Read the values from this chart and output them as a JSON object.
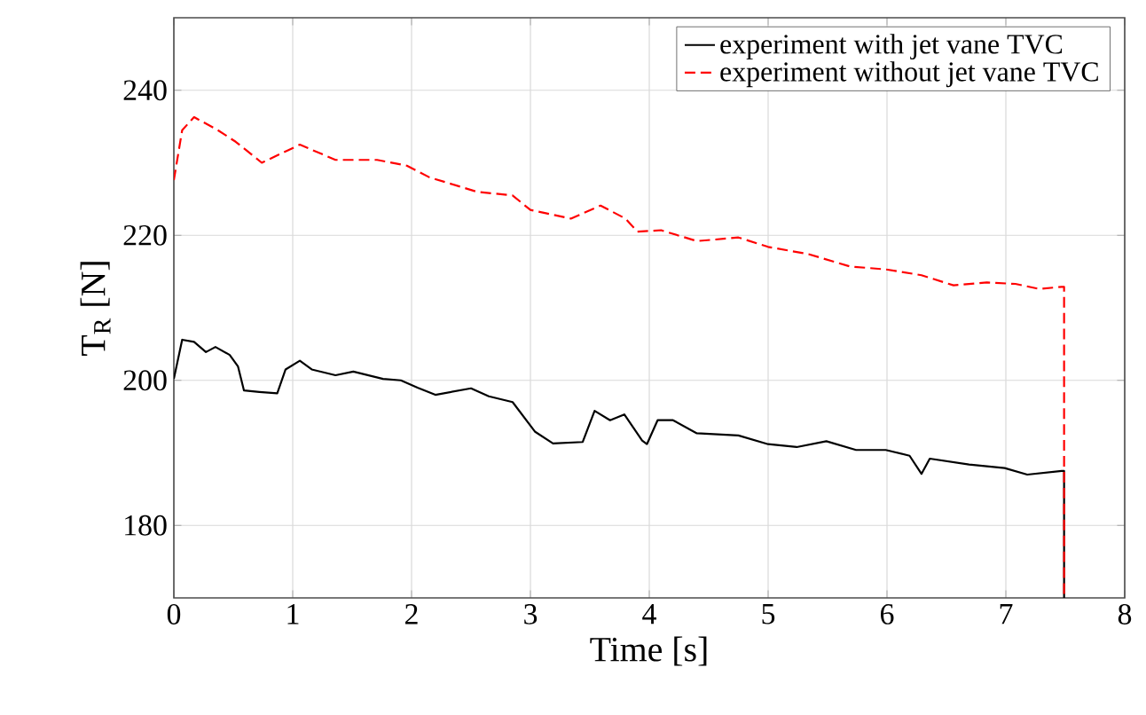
{
  "chart_data": {
    "type": "line",
    "xlabel": "Time [s]",
    "ylabel": "T$_{R}$ [N]",
    "xlim": [
      0,
      8
    ],
    "ylim": [
      170,
      250
    ],
    "xticks": [
      0,
      1,
      2,
      3,
      4,
      5,
      6,
      7,
      8
    ],
    "yticks": [
      180,
      200,
      220,
      240
    ],
    "grid": true,
    "legend": "top right",
    "marker": "none",
    "series": [
      {
        "name": "experiment with jet vane TVC",
        "color": "#000000",
        "line_style": "solid",
        "x": [
          0,
          0.07,
          0.17,
          0.27,
          0.35,
          0.47,
          0.54,
          0.59,
          0.72,
          0.87,
          0.94,
          1.06,
          1.16,
          1.36,
          1.51,
          1.76,
          1.91,
          2.05,
          2.2,
          2.5,
          2.65,
          2.85,
          3.04,
          3.19,
          3.44,
          3.54,
          3.67,
          3.79,
          3.94,
          3.98,
          4.07,
          4.2,
          4.4,
          4.75,
          5.0,
          5.24,
          5.49,
          5.74,
          5.99,
          6.19,
          6.29,
          6.36,
          6.69,
          6.99,
          7.18,
          7.47,
          7.49,
          7.49
        ],
        "values": [
          200.2,
          205.6,
          205.3,
          203.9,
          204.6,
          203.5,
          201.9,
          198.6,
          198.4,
          198.2,
          201.5,
          202.7,
          201.5,
          200.7,
          201.2,
          200.2,
          200.0,
          199.0,
          198.0,
          198.9,
          197.8,
          197.0,
          192.9,
          191.3,
          191.5,
          195.8,
          194.5,
          195.3,
          191.7,
          191.2,
          194.5,
          194.5,
          192.7,
          192.4,
          191.2,
          190.8,
          191.6,
          190.4,
          190.4,
          189.6,
          187.1,
          189.2,
          188.4,
          187.9,
          187.0,
          187.5,
          187.5,
          170
        ]
      },
      {
        "name": "experiment without jet vane TVC",
        "color": "#ff0000",
        "line_style": "dashed",
        "x": [
          0,
          0.07,
          0.17,
          0.37,
          0.52,
          0.74,
          1.06,
          1.36,
          1.71,
          1.96,
          2.15,
          2.55,
          2.85,
          3.0,
          3.34,
          3.59,
          3.8,
          3.9,
          4.1,
          4.4,
          4.75,
          5.0,
          5.34,
          5.69,
          5.99,
          6.29,
          6.56,
          6.84,
          7.08,
          7.28,
          7.47,
          7.49,
          7.49
        ],
        "values": [
          227.6,
          234.5,
          236.3,
          234.5,
          232.9,
          230.0,
          232.5,
          230.4,
          230.4,
          229.6,
          228.0,
          226.0,
          225.5,
          223.5,
          222.3,
          224.1,
          222.3,
          220.5,
          220.7,
          219.2,
          219.7,
          218.4,
          217.4,
          215.7,
          215.3,
          214.5,
          213.1,
          213.5,
          213.3,
          212.6,
          212.9,
          212.9,
          170
        ]
      }
    ]
  }
}
